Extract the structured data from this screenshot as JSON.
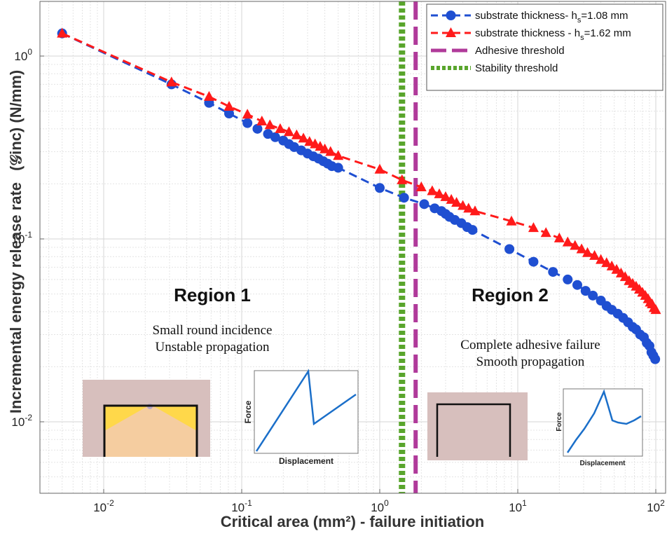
{
  "chart_data": {
    "type": "scatter",
    "x_scale": "log",
    "y_scale": "log",
    "xlim": [
      0.005,
      110
    ],
    "ylim": [
      0.005,
      1.6
    ],
    "grid": true,
    "legend_position": "top-right",
    "xlabel": "Critical area (mm²) - failure initiation",
    "ylabel": "Incremental energy release rate",
    "ylabel_symbol": "(𝒢inc) (N/mm)",
    "x_ticks": [
      {
        "value": 0.01,
        "base": "10",
        "exp": "-2"
      },
      {
        "value": 0.1,
        "base": "10",
        "exp": "-1"
      },
      {
        "value": 1,
        "base": "10",
        "exp": "0"
      },
      {
        "value": 10,
        "base": "10",
        "exp": "1"
      },
      {
        "value": 100,
        "base": "10",
        "exp": "2"
      }
    ],
    "y_ticks": [
      {
        "value": 0.01,
        "base": "10",
        "exp": "-2"
      },
      {
        "value": 0.1,
        "base": "10",
        "exp": "-1"
      },
      {
        "value": 1,
        "base": "10",
        "exp": "0"
      }
    ],
    "legend": [
      {
        "label": "substrate thickness- h",
        "sub": "s",
        "suffix": "=1.08 mm",
        "color": "#1f4fd1",
        "style": "dash-circle"
      },
      {
        "label": "substrate thickness - h",
        "sub": "s",
        "suffix": "=1.62 mm",
        "color": "#ff1a1a",
        "style": "dash-triangle"
      },
      {
        "label": "Adhesive threshold",
        "sub": "",
        "suffix": "",
        "color": "#b03a9a",
        "style": "long-dash"
      },
      {
        "label": "Stability threshold",
        "sub": "",
        "suffix": "",
        "color": "#59a52c",
        "style": "dotted"
      }
    ],
    "thresholds": [
      {
        "name": "Stability threshold",
        "x": 1.45,
        "color": "#59a52c"
      },
      {
        "name": "Adhesive threshold",
        "x": 1.82,
        "color": "#b03a9a"
      }
    ],
    "series": [
      {
        "name": "substrate thickness- hs=1.08 mm",
        "color": "#1f4fd1",
        "marker": "circle",
        "x": [
          0.005,
          0.031,
          0.058,
          0.081,
          0.11,
          0.13,
          0.155,
          0.175,
          0.2,
          0.22,
          0.24,
          0.27,
          0.3,
          0.33,
          0.36,
          0.39,
          0.42,
          0.45,
          0.5,
          1.0,
          1.5,
          2.1,
          2.5,
          2.8,
          3.0,
          3.2,
          3.5,
          3.9,
          4.3,
          4.7,
          8.7,
          13,
          18,
          23,
          27,
          31,
          35,
          40,
          44,
          48,
          53,
          58,
          63,
          68,
          72,
          77,
          82,
          86,
          90,
          93,
          96,
          99
        ],
        "y": [
          1.33,
          0.7,
          0.555,
          0.485,
          0.43,
          0.4,
          0.375,
          0.36,
          0.345,
          0.33,
          0.318,
          0.305,
          0.293,
          0.283,
          0.275,
          0.266,
          0.258,
          0.25,
          0.245,
          0.19,
          0.168,
          0.155,
          0.147,
          0.142,
          0.137,
          0.132,
          0.127,
          0.122,
          0.116,
          0.112,
          0.088,
          0.075,
          0.066,
          0.06,
          0.056,
          0.052,
          0.049,
          0.046,
          0.043,
          0.041,
          0.039,
          0.037,
          0.035,
          0.033,
          0.032,
          0.03,
          0.029,
          0.027,
          0.026,
          0.024,
          0.023,
          0.022
        ]
      },
      {
        "name": "substrate thickness - hs=1.62 mm",
        "color": "#ff1a1a",
        "marker": "triangle",
        "x": [
          0.005,
          0.031,
          0.058,
          0.081,
          0.11,
          0.14,
          0.16,
          0.19,
          0.22,
          0.25,
          0.28,
          0.31,
          0.34,
          0.37,
          0.4,
          0.44,
          0.5,
          1.0,
          1.45,
          2.0,
          2.4,
          2.7,
          3.0,
          3.3,
          3.6,
          4.0,
          4.4,
          4.9,
          9.0,
          13,
          16,
          20,
          23,
          26,
          29,
          32,
          36,
          40,
          44,
          48,
          52,
          56,
          60,
          64,
          68,
          72,
          76,
          80,
          84,
          88,
          91,
          94,
          97,
          100
        ],
        "y": [
          1.33,
          0.72,
          0.6,
          0.53,
          0.48,
          0.44,
          0.42,
          0.4,
          0.385,
          0.37,
          0.355,
          0.34,
          0.33,
          0.32,
          0.31,
          0.3,
          0.285,
          0.24,
          0.21,
          0.192,
          0.183,
          0.176,
          0.17,
          0.164,
          0.158,
          0.152,
          0.147,
          0.142,
          0.125,
          0.115,
          0.108,
          0.101,
          0.096,
          0.092,
          0.088,
          0.084,
          0.081,
          0.077,
          0.074,
          0.071,
          0.068,
          0.065,
          0.062,
          0.059,
          0.057,
          0.055,
          0.053,
          0.051,
          0.049,
          0.047,
          0.045,
          0.044,
          0.042,
          0.041
        ]
      }
    ],
    "regions": [
      {
        "title": "Region 1",
        "line1": "Small round incidence",
        "line2": "Unstable propagation"
      },
      {
        "title": "Region 2",
        "line1": "Complete adhesive failure",
        "line2": "Smooth propagation"
      }
    ],
    "insets": {
      "force_label": "Force",
      "displacement_label": "Displacement"
    }
  }
}
